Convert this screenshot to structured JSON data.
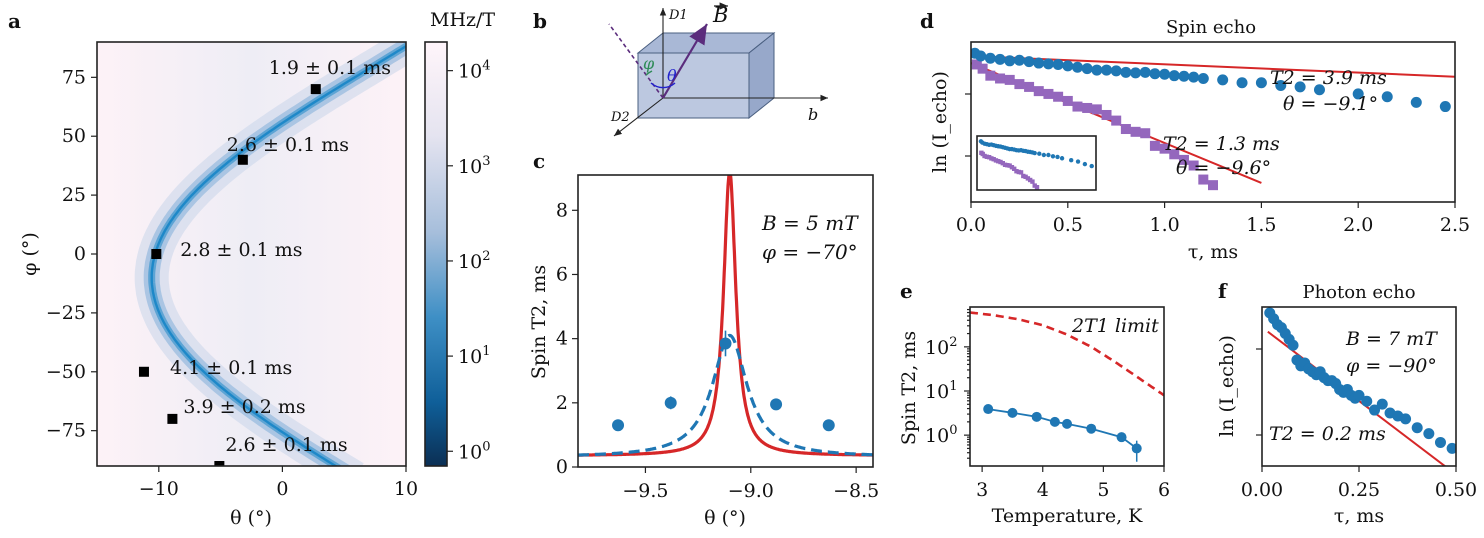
{
  "colors": {
    "blue": "#1f77b4",
    "red": "#d62728",
    "purple": "#9467bd",
    "map_peak": "#2a93cf"
  },
  "panel_letters": {
    "a": "a",
    "b": "b",
    "c": "c",
    "d": "d",
    "e": "e",
    "f": "f"
  },
  "panel_b": {
    "d1": "D1",
    "d2": "D2",
    "b": "b",
    "B": "B",
    "phi": "φ",
    "theta": "θ"
  },
  "chart_data": [
    {
      "id": "a",
      "type": "heatmap",
      "xlabel": "θ (°)",
      "ylabel": "φ (°)",
      "xlim": [
        -15,
        10
      ],
      "ylim": [
        -90,
        90
      ],
      "xticks": [
        -10,
        0,
        10
      ],
      "yticks": [
        75,
        50,
        25,
        0,
        -25,
        -50,
        -75
      ],
      "colorbar": {
        "label": "MHz/T",
        "scale": "log",
        "ticks": [
          "10^0",
          "10^1",
          "10^2",
          "10^3",
          "10^4"
        ],
        "range": [
          0.7,
          20000
        ]
      },
      "ridge_curve": {
        "theta_min": -11.8,
        "theta_at_phi0": -10.3,
        "phi_shift": -10,
        "amplitude": 18
      },
      "points": [
        {
          "theta": 2.7,
          "phi": 70,
          "label": "1.9 ± 0.1 ms"
        },
        {
          "theta": -3.2,
          "phi": 40,
          "label": "2.6 ± 0.1 ms"
        },
        {
          "theta": -10.2,
          "phi": 0,
          "label": "2.8 ± 0.1 ms"
        },
        {
          "theta": -11.2,
          "phi": -50,
          "label": "4.1 ± 0.1 ms"
        },
        {
          "theta": -8.9,
          "phi": -70,
          "label": "3.9 ± 0.2 ms"
        },
        {
          "theta": -5.1,
          "phi": -90,
          "label": "2.6 ± 0.1 ms"
        }
      ]
    },
    {
      "id": "c",
      "type": "scatter",
      "xlabel": "θ (°)",
      "ylabel": "Spin T2, ms",
      "xlim": [
        -9.82,
        -8.42
      ],
      "ylim": [
        0,
        9.1
      ],
      "xticks": [
        -9.5,
        -9.0,
        -8.5
      ],
      "yticks": [
        0,
        2,
        4,
        6,
        8
      ],
      "annotation": [
        "B = 5 mT",
        "φ = −70°"
      ],
      "series": [
        {
          "name": "data",
          "x": [
            -9.63,
            -9.38,
            -9.12,
            -8.88,
            -8.63
          ],
          "y": [
            1.3,
            2.0,
            3.85,
            1.95,
            1.3
          ],
          "yerr": [
            0.15,
            0.2,
            0.4,
            0.15,
            0.12
          ]
        },
        {
          "name": "theory",
          "center": -9.1,
          "peak": 9.2,
          "base": 0.35,
          "width": 0.035
        },
        {
          "name": "fit",
          "center": -9.1,
          "peak": 4.1,
          "base": 0.3,
          "width": 0.1
        }
      ]
    },
    {
      "id": "d",
      "type": "scatter",
      "title": "Spin echo",
      "xlabel": "τ, ms",
      "ylabel": "ln (I_echo)",
      "xlim": [
        0,
        2.5
      ],
      "ylim": [
        -5.3,
        0.4
      ],
      "xticks": [
        0.0,
        0.5,
        1.0,
        1.5,
        2.0,
        2.5
      ],
      "series": [
        {
          "name": "θ = −9.1°",
          "T2_label": "T2 = 3.9 ms",
          "theta_label": "θ = −9.1°",
          "T2": 3.9,
          "x": [
            0.02,
            0.05,
            0.1,
            0.15,
            0.2,
            0.25,
            0.3,
            0.35,
            0.4,
            0.45,
            0.5,
            0.55,
            0.6,
            0.65,
            0.7,
            0.75,
            0.8,
            0.85,
            0.9,
            0.95,
            1.0,
            1.05,
            1.1,
            1.15,
            1.2,
            1.3,
            1.4,
            1.5,
            1.6,
            1.7,
            1.8,
            2.0,
            2.15,
            2.3,
            2.45
          ],
          "y": [
            0,
            -0.1,
            -0.18,
            -0.22,
            -0.27,
            -0.25,
            -0.3,
            -0.35,
            -0.38,
            -0.4,
            -0.45,
            -0.5,
            -0.55,
            -0.6,
            -0.6,
            -0.63,
            -0.68,
            -0.7,
            -0.68,
            -0.73,
            -0.75,
            -0.8,
            -0.82,
            -0.85,
            -0.9,
            -0.95,
            -1.05,
            -1.05,
            -1.15,
            -1.2,
            -1.3,
            -1.45,
            -1.55,
            -1.75,
            -1.9
          ]
        },
        {
          "name": "θ = −9.6°",
          "T2_label": "T2 = 1.3 ms",
          "theta_label": "θ = −9.6°",
          "T2": 1.3,
          "x": [
            0.03,
            0.06,
            0.1,
            0.15,
            0.2,
            0.25,
            0.3,
            0.35,
            0.4,
            0.45,
            0.5,
            0.55,
            0.6,
            0.65,
            0.7,
            0.75,
            0.8,
            0.85,
            0.9,
            0.95,
            1.0,
            1.05,
            1.1,
            1.15,
            1.2,
            1.25
          ],
          "y": [
            -0.4,
            -0.55,
            -0.8,
            -0.9,
            -0.95,
            -1.1,
            -1.2,
            -1.35,
            -1.45,
            -1.55,
            -1.7,
            -1.9,
            -1.95,
            -2.0,
            -2.2,
            -2.4,
            -2.7,
            -2.8,
            -2.85,
            -3.3,
            -3.4,
            -3.6,
            -3.8,
            -4.0,
            -4.5,
            -4.7
          ]
        }
      ]
    },
    {
      "id": "e",
      "type": "line",
      "xlabel": "Temperature, K",
      "ylabel": "Spin T2, ms",
      "xlim": [
        2.8,
        6
      ],
      "ylim": [
        0.2,
        800
      ],
      "yscale": "log",
      "xticks": [
        3,
        4,
        5,
        6
      ],
      "yticks": [
        "10^0",
        "10^1",
        "10^2"
      ],
      "annotation": "2T1 limit",
      "series": [
        {
          "name": "2T1 limit",
          "x": [
            2.8,
            3.2,
            3.6,
            4.0,
            4.4,
            4.8,
            5.2,
            5.6,
            6.0
          ],
          "y": [
            600,
            520,
            420,
            310,
            190,
            100,
            45,
            19,
            8
          ]
        },
        {
          "name": "Spin T2",
          "x": [
            3.1,
            3.5,
            3.9,
            4.2,
            4.4,
            4.8,
            5.3,
            5.55
          ],
          "y": [
            3.9,
            3.2,
            2.6,
            2.0,
            1.8,
            1.4,
            0.9,
            0.5
          ],
          "yerr": [
            0.3,
            0.2,
            0.2,
            0.15,
            0.15,
            0.15,
            0.1,
            0.25
          ]
        }
      ]
    },
    {
      "id": "f",
      "type": "scatter",
      "title": "Photon echo",
      "xlabel": "τ, ms",
      "ylabel": "ln (I_echo)",
      "xlim": [
        0,
        0.5
      ],
      "ylim": [
        -2.6,
        0.1
      ],
      "xticks": [
        "0.00",
        "0.25",
        "0.50"
      ],
      "annotation": [
        "B = 7 mT",
        "φ = −90°"
      ],
      "fit_label": "T2 = 0.2 ms",
      "T2": 0.2,
      "series": [
        {
          "name": "photon echo",
          "x": [
            0.02,
            0.03,
            0.04,
            0.05,
            0.06,
            0.07,
            0.08,
            0.09,
            0.1,
            0.11,
            0.12,
            0.13,
            0.14,
            0.15,
            0.16,
            0.17,
            0.18,
            0.19,
            0.2,
            0.21,
            0.22,
            0.23,
            0.24,
            0.25,
            0.27,
            0.29,
            0.31,
            0.33,
            0.35,
            0.37,
            0.4,
            0.43,
            0.46,
            0.49
          ],
          "y": [
            0.0,
            -0.1,
            -0.2,
            -0.25,
            -0.35,
            -0.45,
            -0.55,
            -0.8,
            -0.9,
            -0.85,
            -0.95,
            -1.0,
            -1.05,
            -1.0,
            -1.1,
            -1.15,
            -1.15,
            -1.2,
            -1.3,
            -1.35,
            -1.3,
            -1.4,
            -1.45,
            -1.4,
            -1.5,
            -1.65,
            -1.55,
            -1.7,
            -1.75,
            -1.8,
            -1.95,
            -2.05,
            -2.2,
            -2.3
          ]
        }
      ]
    }
  ]
}
